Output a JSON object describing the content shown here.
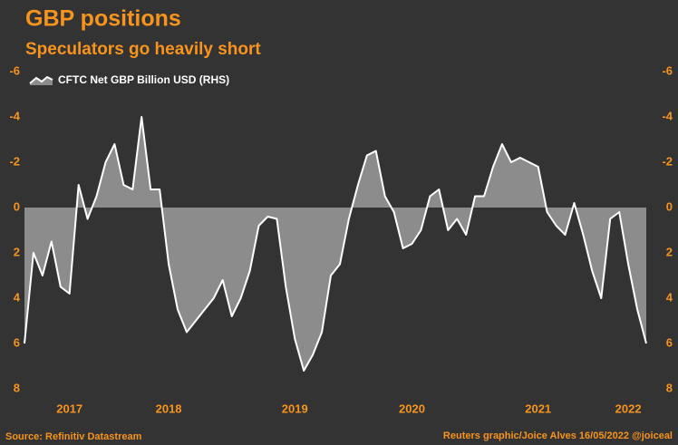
{
  "chart_data": {
    "type": "area",
    "title": "GBP positions",
    "subtitle": "Speculators go heavily short",
    "source": "Source: Refinitiv Datastream",
    "credit": "Reuters graphic/Joice Alves 16/05/2022 @joiceal",
    "categories": [
      null,
      null,
      null,
      null,
      null,
      "2017",
      null,
      null,
      null,
      null,
      null,
      null,
      null,
      null,
      null,
      null,
      "2018",
      null,
      null,
      null,
      null,
      null,
      null,
      null,
      null,
      null,
      null,
      null,
      null,
      null,
      "2019",
      null,
      null,
      null,
      null,
      null,
      null,
      null,
      null,
      null,
      null,
      null,
      null,
      "2020",
      null,
      null,
      null,
      null,
      null,
      null,
      null,
      null,
      null,
      null,
      null,
      null,
      null,
      "2021",
      null,
      null,
      null,
      null,
      null,
      null,
      null,
      null,
      null,
      "2022",
      null,
      null
    ],
    "series": [
      {
        "name": "CFTC Net GBP Billion USD (RHS)",
        "color": "#ffffff",
        "fill": "#8c8c8c",
        "axis": "y2",
        "values": [
          6,
          2,
          3,
          1.5,
          3.5,
          3.8,
          -1,
          0.5,
          -0.5,
          -2,
          -2.8,
          -1,
          -0.8,
          -4,
          -0.8,
          -0.8,
          2.5,
          4.5,
          5.5,
          5,
          4.5,
          4,
          3.2,
          4.8,
          4,
          2.8,
          0.8,
          0.4,
          0.5,
          3.5,
          5.8,
          7.2,
          6.5,
          5.5,
          3,
          2.5,
          0.5,
          -1,
          -2.3,
          -2.5,
          -0.5,
          0.2,
          1.8,
          1.6,
          1,
          -0.5,
          -0.8,
          1,
          0.5,
          1.2,
          -0.5,
          -0.5,
          -1.8,
          -2.8,
          -2,
          -2.2,
          -2,
          -1.8,
          0.2,
          0.8,
          1.2,
          -0.2,
          1.2,
          2.8,
          4,
          0.5,
          0.2,
          2.5,
          4.5,
          6
        ]
      }
    ],
    "ylim": [
      -6,
      8
    ],
    "yticks": [
      -6,
      -4,
      -2,
      0,
      2,
      4,
      6,
      8
    ],
    "y2lim": [
      -6,
      8
    ],
    "y2ticks": [
      -6,
      -4,
      -2,
      0,
      2,
      4,
      6,
      8
    ],
    "inverted": true
  }
}
